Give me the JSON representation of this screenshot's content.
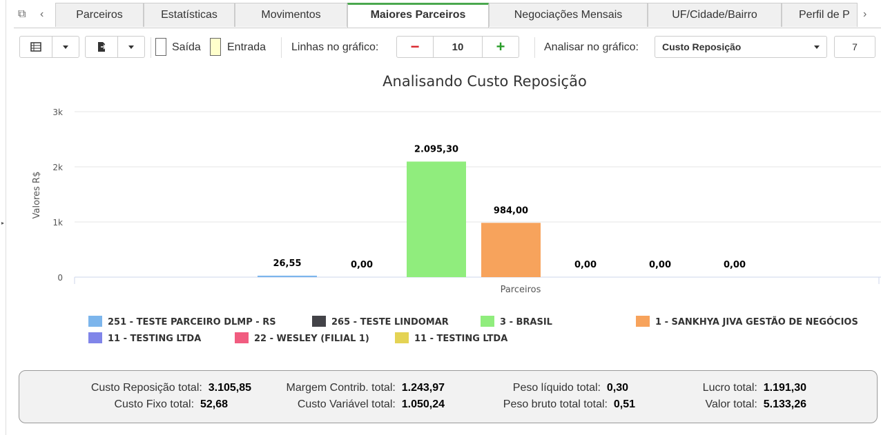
{
  "tabs": [
    {
      "label": "Parceiros"
    },
    {
      "label": "Estatísticas"
    },
    {
      "label": "Movimentos"
    },
    {
      "label": "Maiores Parceiros"
    },
    {
      "label": "Negociações Mensais"
    },
    {
      "label": "UF/Cidade/Bairro"
    },
    {
      "label": "Perfil de P"
    }
  ],
  "toolbar": {
    "saida_label": "Saída",
    "entrada_label": "Entrada",
    "lines_label": "Linhas no gráfico:",
    "lines_value": "10",
    "analyze_label": "Analisar no gráfico:",
    "analyze_value": "Custo Reposição",
    "extra_value": "7",
    "saida_color": "#ffffff",
    "entrada_color": "#ffffcc"
  },
  "chart_data": {
    "type": "bar",
    "title": "Analisando Custo Reposição",
    "xlabel": "Parceiros",
    "ylabel": "Valores R$",
    "ylim": [
      0,
      3000
    ],
    "yticks": [
      "0",
      "1k",
      "2k",
      "3k"
    ],
    "series": [
      {
        "name": "251 - TESTE PARCEIRO DLMP - RS",
        "value": 26.55,
        "label": "26,55",
        "color": "#7cb5ec"
      },
      {
        "name": "265 - TESTE LINDOMAR",
        "value": 0,
        "label": "0,00",
        "color": "#434348"
      },
      {
        "name": "3 - BRASIL",
        "value": 2095.3,
        "label": "2.095,30",
        "color": "#90ed7d"
      },
      {
        "name": "1 - SANKHYA JIVA GESTÃO DE NEGÓCIOS",
        "value": 984.0,
        "label": "984,00",
        "color": "#f7a35c"
      },
      {
        "name": "11 - TESTING LTDA",
        "value": 0,
        "label": "0,00",
        "color": "#8085e9"
      },
      {
        "name": "22 - WESLEY (FILIAL 1)",
        "value": 0,
        "label": "0,00",
        "color": "#f15c80"
      },
      {
        "name": "11 - TESTING LTDA",
        "value": 0,
        "label": "0,00",
        "color": "#e4d354"
      }
    ]
  },
  "summary": {
    "custo_reposicao_label": "Custo Reposição total:",
    "custo_reposicao_value": "3.105,85",
    "custo_fixo_label": "Custo Fixo total:",
    "custo_fixo_value": "52,68",
    "margem_label": "Margem Contrib. total:",
    "margem_value": "1.243,97",
    "custo_variavel_label": "Custo Variável total:",
    "custo_variavel_value": "1.050,24",
    "peso_liquido_label": "Peso líquido total:",
    "peso_liquido_value": "0,30",
    "peso_bruto_label": "Peso bruto total total:",
    "peso_bruto_value": "0,51",
    "lucro_label": "Lucro total:",
    "lucro_value": "1.191,30",
    "valor_label": "Valor total:",
    "valor_value": "5.133,26"
  }
}
